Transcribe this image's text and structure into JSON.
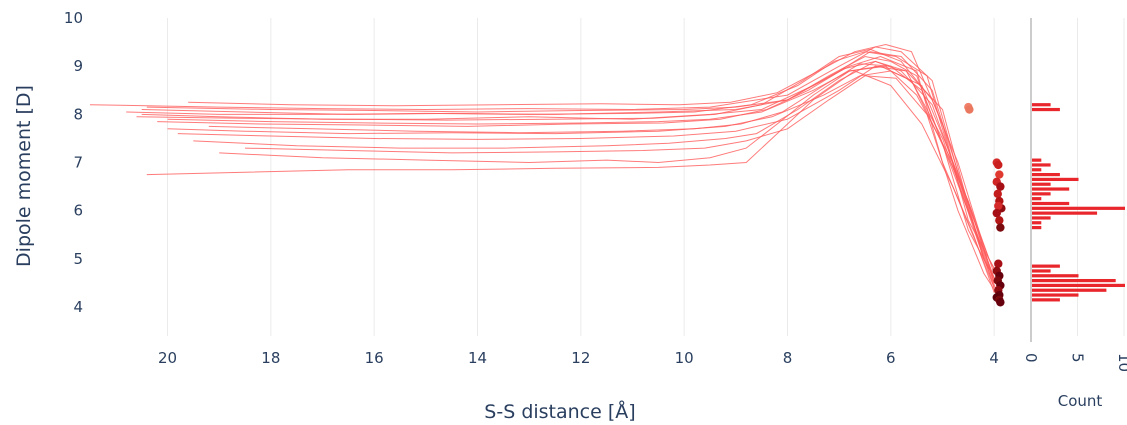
{
  "chart_data": [
    {
      "type": "line",
      "xlabel": "S-S distance [Å]",
      "ylabel": "Dipole moment [D]",
      "x_reversed": true,
      "xlim": [
        21.5,
        3.5
      ],
      "ylim": [
        3.4,
        10
      ],
      "x_ticks": [
        "20",
        "18",
        "16",
        "14",
        "12",
        "10",
        "8",
        "6",
        "4"
      ],
      "y_ticks": [
        "4",
        "5",
        "6",
        "7",
        "8",
        "9",
        "10"
      ],
      "grid": true,
      "line_color": "#ff5a5a",
      "series": [
        {
          "x": [
            21.5,
            19,
            17,
            15,
            13,
            11,
            9.5,
            8,
            7,
            6.3,
            5.8,
            5.2,
            4.6,
            4.2,
            3.9
          ],
          "y": [
            8.2,
            8.15,
            8.12,
            8.1,
            8.12,
            8.1,
            8.15,
            8.4,
            9.0,
            9.4,
            9.3,
            8.7,
            6.4,
            5.0,
            4.4
          ]
        },
        {
          "x": [
            20.5,
            18.5,
            16.5,
            14.5,
            12.5,
            10.5,
            9,
            8,
            7.2,
            6.5,
            6,
            5.5,
            5,
            4.5,
            4.0
          ],
          "y": [
            8.1,
            8.05,
            8.0,
            8.02,
            8.0,
            8.05,
            8.1,
            8.3,
            8.8,
            9.2,
            9.1,
            8.8,
            7.4,
            5.6,
            4.6
          ]
        },
        {
          "x": [
            20.5,
            19,
            17,
            15,
            13,
            11,
            9.5,
            8.5,
            7.5,
            6.8,
            6.2,
            5.5,
            5,
            4.4,
            4.0
          ],
          "y": [
            8.0,
            7.95,
            7.9,
            7.9,
            7.95,
            7.9,
            8.0,
            8.1,
            8.6,
            9.0,
            9.2,
            8.9,
            7.0,
            5.5,
            4.3
          ]
        },
        {
          "x": [
            20,
            18,
            16,
            14,
            12,
            10.5,
            9.5,
            8.5,
            7.5,
            6.8,
            6.2,
            5.6,
            5.1,
            4.5,
            4.0
          ],
          "y": [
            7.9,
            7.85,
            7.82,
            7.8,
            7.82,
            7.85,
            7.9,
            8.05,
            8.5,
            8.9,
            9.0,
            8.7,
            7.6,
            6.2,
            4.5
          ]
        },
        {
          "x": [
            20.4,
            18,
            16,
            14,
            12,
            10,
            9,
            8,
            7,
            6.4,
            5.8,
            5.2,
            4.7,
            4.2,
            3.9
          ],
          "y": [
            8.15,
            8.1,
            8.08,
            8.05,
            8.08,
            8.1,
            8.15,
            8.3,
            8.9,
            9.3,
            9.2,
            8.5,
            6.8,
            5.2,
            4.3
          ]
        },
        {
          "x": [
            20,
            18.5,
            16.5,
            14.5,
            12.5,
            10.5,
            9.2,
            8.3,
            7.3,
            6.6,
            6.0,
            5.4,
            4.9,
            4.4,
            4.0
          ],
          "y": [
            7.7,
            7.65,
            7.6,
            7.62,
            7.6,
            7.65,
            7.75,
            7.95,
            8.4,
            8.8,
            8.9,
            8.6,
            7.3,
            5.9,
            4.7
          ]
        },
        {
          "x": [
            19.8,
            18,
            16,
            14,
            12,
            10.2,
            9,
            8,
            7,
            6.3,
            5.7,
            5.0,
            4.6,
            4.2,
            3.9
          ],
          "y": [
            7.6,
            7.55,
            7.5,
            7.48,
            7.5,
            7.55,
            7.65,
            7.9,
            8.5,
            9.0,
            8.9,
            8.1,
            6.5,
            5.0,
            4.2
          ]
        },
        {
          "x": [
            20.4,
            18.5,
            16.5,
            14.5,
            12.5,
            10.5,
            9.5,
            8.8,
            8.3,
            7.5,
            6.7,
            6.0,
            5.4,
            4.8,
            4.3,
            4.0
          ],
          "y": [
            6.75,
            6.8,
            6.85,
            6.85,
            6.88,
            6.9,
            6.95,
            7.0,
            7.5,
            8.3,
            8.9,
            8.6,
            7.8,
            6.5,
            5.2,
            4.4
          ]
        },
        {
          "x": [
            19.0,
            17,
            15,
            13,
            11.5,
            10.5,
            9.5,
            8.8,
            8.2,
            7.5,
            6.8,
            6.1,
            5.5,
            4.8,
            4.3,
            4.0
          ],
          "y": [
            7.2,
            7.1,
            7.05,
            7.0,
            7.05,
            7.0,
            7.1,
            7.3,
            7.8,
            8.4,
            8.9,
            9.0,
            8.4,
            7.0,
            5.4,
            4.5
          ]
        },
        {
          "x": [
            19.5,
            17.5,
            15.5,
            13.5,
            11.5,
            10.3,
            9.2,
            8.6,
            7.8,
            7.0,
            6.3,
            5.7,
            5.0,
            4.5,
            4.0
          ],
          "y": [
            7.45,
            7.35,
            7.3,
            7.3,
            7.35,
            7.4,
            7.5,
            7.6,
            8.1,
            8.7,
            9.1,
            8.9,
            7.5,
            6.0,
            4.6
          ]
        },
        {
          "x": [
            20.8,
            19,
            17,
            15,
            13,
            11,
            9.8,
            8.7,
            7.8,
            7.1,
            6.5,
            5.9,
            5.3,
            4.7,
            4.2,
            3.9
          ],
          "y": [
            8.05,
            8.0,
            8.0,
            8.02,
            8.0,
            8.02,
            8.05,
            8.2,
            8.6,
            9.1,
            9.3,
            9.2,
            8.8,
            6.6,
            5.0,
            4.4
          ]
        },
        {
          "x": [
            20.2,
            18.2,
            16.2,
            14.2,
            12.2,
            10.4,
            9.3,
            8.4,
            7.6,
            6.9,
            6.3,
            5.8,
            5.2,
            4.6,
            4.1,
            3.9
          ],
          "y": [
            7.85,
            7.8,
            7.78,
            7.75,
            7.8,
            7.82,
            7.9,
            8.1,
            8.5,
            8.95,
            9.1,
            8.9,
            8.2,
            6.4,
            5.0,
            4.6
          ]
        },
        {
          "x": [
            19.6,
            17.6,
            15.6,
            13.6,
            11.6,
            10.1,
            9.1,
            8.2,
            7.4,
            6.7,
            6.1,
            5.6,
            5.0,
            4.5,
            4.0
          ],
          "y": [
            8.25,
            8.2,
            8.18,
            8.2,
            8.22,
            8.2,
            8.25,
            8.45,
            8.9,
            9.3,
            9.45,
            9.3,
            7.8,
            5.8,
            4.8
          ]
        },
        {
          "x": [
            18.5,
            16.5,
            14.5,
            12.5,
            10.8,
            9.6,
            8.8,
            8.0,
            7.2,
            6.5,
            5.9,
            5.3,
            4.7,
            4.2,
            3.9
          ],
          "y": [
            7.3,
            7.25,
            7.2,
            7.22,
            7.25,
            7.3,
            7.45,
            7.7,
            8.3,
            8.8,
            8.75,
            8.0,
            6.0,
            4.7,
            4.2
          ]
        },
        {
          "x": [
            20.6,
            18.6,
            16.6,
            14.6,
            12.6,
            10.6,
            9.4,
            8.5,
            7.7,
            7.0,
            6.4,
            5.8,
            5.2,
            4.7,
            4.3,
            4.0
          ],
          "y": [
            7.95,
            7.92,
            7.9,
            7.88,
            7.9,
            7.92,
            8.0,
            8.2,
            8.7,
            9.2,
            9.35,
            9.1,
            8.3,
            7.0,
            5.6,
            4.5
          ]
        },
        {
          "x": [
            19.2,
            17.2,
            15.2,
            13.2,
            11.2,
            9.8,
            8.9,
            8.1,
            7.3,
            6.6,
            6.0,
            5.4,
            4.9,
            4.4,
            4.0
          ],
          "y": [
            7.75,
            7.7,
            7.65,
            7.62,
            7.65,
            7.7,
            7.8,
            8.05,
            8.6,
            9.05,
            9.0,
            8.5,
            7.1,
            5.7,
            4.4
          ]
        }
      ],
      "markers": {
        "x": [
          4.5,
          4.48,
          3.95,
          3.92,
          3.9,
          3.95,
          3.88,
          3.93,
          3.9,
          3.86,
          3.92,
          3.95,
          3.9,
          3.88,
          3.92,
          3.95,
          3.9,
          3.93,
          3.88,
          3.92,
          3.9,
          3.95,
          3.9,
          3.88
        ],
        "y": [
          8.15,
          8.1,
          7.0,
          6.95,
          6.75,
          6.6,
          6.5,
          6.35,
          6.2,
          6.05,
          6.1,
          5.95,
          5.8,
          5.65,
          4.9,
          4.75,
          4.65,
          4.55,
          4.45,
          4.35,
          4.25,
          4.2,
          4.15,
          4.1
        ],
        "colors": [
          "#f0806a",
          "#e9785f",
          "#d42a2a",
          "#c91f1f",
          "#e03a30",
          "#cf2525",
          "#a50f15",
          "#c41d1d",
          "#b31414",
          "#8f0c10",
          "#d42a2a",
          "#a50f15",
          "#b31414",
          "#7a0a0d",
          "#a50f15",
          "#8f0c10",
          "#67000d",
          "#7a0a0d",
          "#67000d",
          "#8f0c10",
          "#67000d",
          "#5a000b",
          "#7a0a0d",
          "#67000d"
        ]
      }
    },
    {
      "type": "bar",
      "orientation": "horizontal",
      "xlabel": "Count",
      "x_ticks": [
        "0",
        "5",
        "10"
      ],
      "xlim": [
        0,
        10
      ],
      "ylim": [
        3.4,
        10
      ],
      "bar_color": "#e8262b",
      "bins_y": [
        8.2,
        8.1,
        7.05,
        6.95,
        6.85,
        6.75,
        6.65,
        6.55,
        6.45,
        6.35,
        6.25,
        6.15,
        6.05,
        5.95,
        5.85,
        5.75,
        5.65,
        4.85,
        4.75,
        4.65,
        4.55,
        4.45,
        4.35,
        4.25,
        4.15
      ],
      "values": [
        2,
        3,
        1,
        2,
        1,
        3,
        5,
        2,
        4,
        2,
        1,
        4,
        10,
        7,
        2,
        1,
        1,
        3,
        2,
        5,
        9,
        10,
        8,
        5,
        3
      ]
    }
  ]
}
